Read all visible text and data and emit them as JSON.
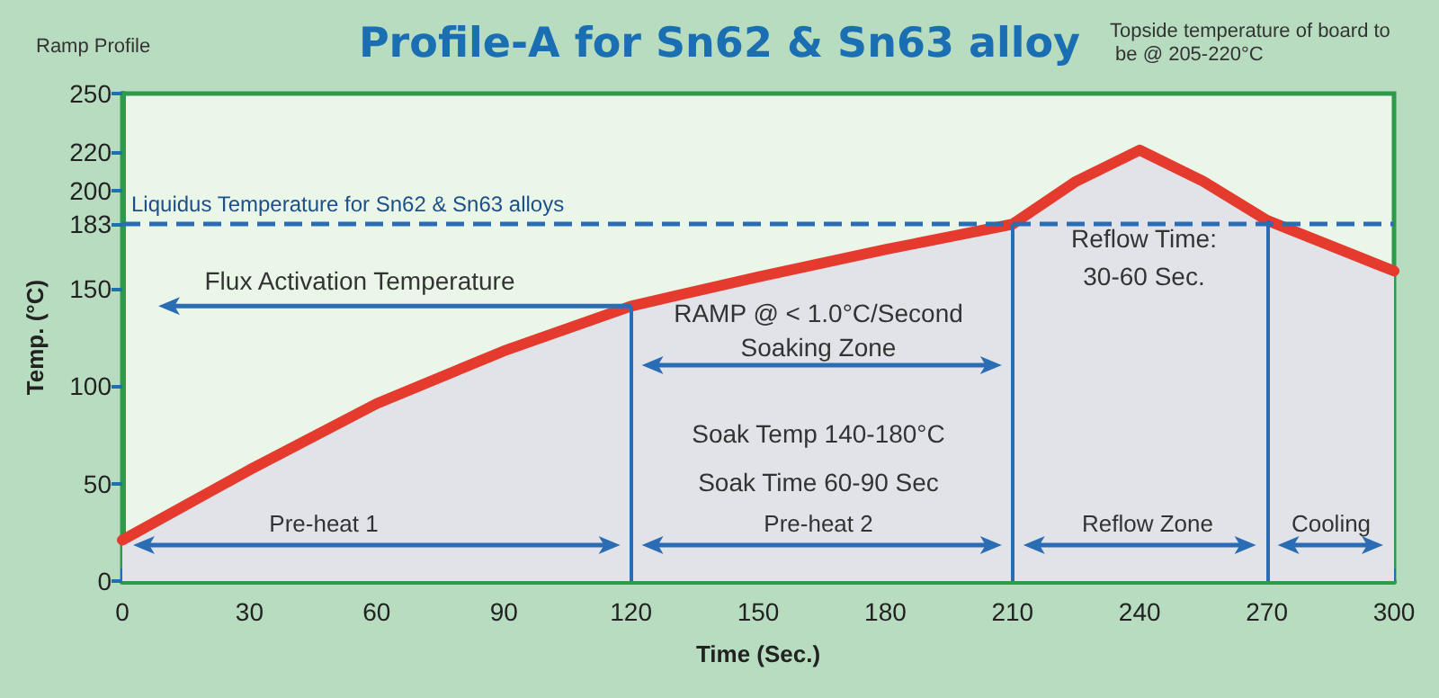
{
  "chart_data": {
    "type": "area",
    "title": "Profile-A for Sn62 & Sn63 alloy",
    "xlabel": "Time (Sec.)",
    "ylabel": "Temp. (°C)",
    "x": [
      0,
      30,
      60,
      90,
      120,
      150,
      180,
      210,
      225,
      240,
      255,
      270,
      300
    ],
    "series": [
      {
        "color": "#e53b2f",
        "values": [
          21,
          57,
          91,
          118,
          141,
          156,
          170,
          183,
          205,
          221,
          205,
          185,
          159
        ]
      }
    ],
    "xlim": [
      0,
      300
    ],
    "xticks": [
      0,
      30,
      60,
      90,
      120,
      150,
      180,
      210,
      240,
      270,
      300
    ],
    "ylim": [
      0,
      250
    ],
    "yticks": [
      0,
      50,
      100,
      150,
      183,
      200,
      220,
      250
    ],
    "ref_lines": [
      {
        "axis": "y",
        "value": 183,
        "label": "Liquidus Temperature for Sn62 & Sn63 alloys",
        "color": "#2a6db5",
        "line_style": "dashed"
      },
      {
        "axis": "x",
        "value": 120,
        "color": "#2a6db5",
        "line_style": "solid"
      },
      {
        "axis": "x",
        "value": 210,
        "color": "#2a6db5",
        "line_style": "solid"
      },
      {
        "axis": "x",
        "value": 270,
        "color": "#2a6db5",
        "line_style": "solid"
      }
    ],
    "annotations": [
      "Ramp Profile",
      "Topside temperature of board to be @ 205-220°C",
      "Flux Activation Temperature",
      "RAMP @ < 1.0°C/Second",
      "Soaking Zone",
      "Soak Temp 140-180°C",
      "Soak Time 60-90 Sec",
      "Pre-heat 1",
      "Pre-heat 2",
      "Reflow Time:\n30-60 Sec.",
      "Reflow Zone",
      "Cooling"
    ],
    "marker": "none"
  }
}
